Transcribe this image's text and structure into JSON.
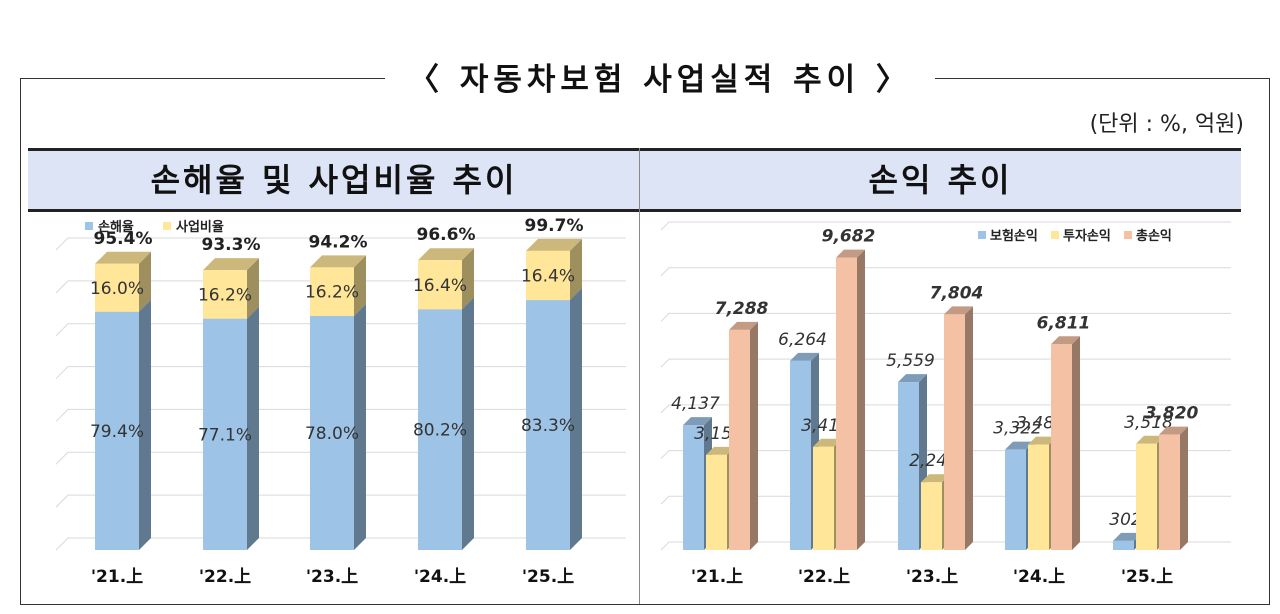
{
  "title": "〈 자동차보험 사업실적 추이 〉",
  "unit_note": "(단위 : %, 억원)",
  "colors": {
    "blue": "#9dc3e6",
    "yellow": "#ffe699",
    "salmon": "#f4c1a4",
    "red": "#ff0000",
    "header_bg": "#dde4f5"
  },
  "chart_data": [
    {
      "type": "bar",
      "title": "손해율 및 사업비율 추이",
      "categories": [
        "'21.上",
        "'22.上",
        "'23.上",
        "'24.上",
        "'25.上"
      ],
      "stacked": true,
      "series": [
        {
          "name": "손해율",
          "values": [
            79.4,
            77.1,
            78.0,
            80.2,
            83.3
          ],
          "labels": [
            "79.4%",
            "77.1%",
            "78.0%",
            "80.2%",
            "83.3%"
          ],
          "color": "#9dc3e6"
        },
        {
          "name": "사업비율",
          "values": [
            16.0,
            16.2,
            16.2,
            16.4,
            16.4
          ],
          "labels": [
            "16.0%",
            "16.2%",
            "16.2%",
            "16.4%",
            "16.4%"
          ],
          "color": "#ffe699"
        }
      ],
      "totals": [
        95.4,
        93.3,
        94.2,
        96.6,
        99.7
      ],
      "total_labels": [
        "95.4%",
        "93.3%",
        "94.2%",
        "96.6%",
        "99.7%"
      ],
      "highlight_last_total": true,
      "legend_position": "top-left",
      "grid": true
    },
    {
      "type": "bar",
      "title": "손익 추이",
      "categories": [
        "'21.上",
        "'22.上",
        "'23.上",
        "'24.上",
        "'25.上"
      ],
      "series": [
        {
          "name": "보험손익",
          "values": [
            4137,
            6264,
            5559,
            3322,
            302
          ],
          "labels": [
            "4,137",
            "6,264",
            "5,559",
            "3,322",
            "302"
          ],
          "color": "#9dc3e6"
        },
        {
          "name": "투자손익",
          "values": [
            3151,
            3418,
            2245,
            3489,
            3518
          ],
          "labels": [
            "3,151",
            "3,418",
            "2,245",
            "3,489",
            "3,518"
          ],
          "color": "#ffe699"
        },
        {
          "name": "총손익",
          "values": [
            7288,
            9682,
            7804,
            6811,
            3820
          ],
          "labels": [
            "7,288",
            "9,682",
            "7,804",
            "6,811",
            "3,820"
          ],
          "color": "#f4c1a4",
          "label_color": "#ff0000"
        }
      ],
      "legend_position": "top-right",
      "grid": true
    }
  ]
}
